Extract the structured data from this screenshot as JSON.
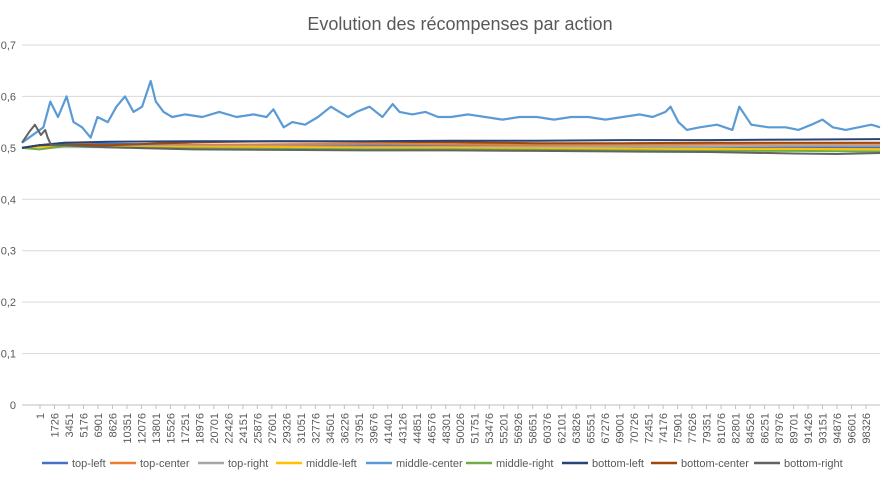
{
  "chart_data": {
    "type": "line",
    "title": "Evolution des récompenses par action",
    "xlabel": "",
    "ylabel": "",
    "ylim": [
      0,
      0.7
    ],
    "y_ticks": [
      "0",
      "0,1",
      "0,2",
      "0,3",
      "0,4",
      "0,5",
      "0,6",
      "0,7"
    ],
    "y_tick_values": [
      0,
      0.1,
      0.2,
      0.3,
      0.4,
      0.5,
      0.6,
      0.7
    ],
    "x_tick_labels": [
      "1",
      "1726",
      "3451",
      "5176",
      "6901",
      "8626",
      "10351",
      "12076",
      "13801",
      "15526",
      "17251",
      "18976",
      "20701",
      "22426",
      "24151",
      "25876",
      "27601",
      "29326",
      "31051",
      "32776",
      "34501",
      "36226",
      "37951",
      "39676",
      "41401",
      "43126",
      "44851",
      "46576",
      "48301",
      "50026",
      "51751",
      "53476",
      "55201",
      "56926",
      "58651",
      "60376",
      "62101",
      "63826",
      "65551",
      "67276",
      "69001",
      "70726",
      "72451",
      "74176",
      "75901",
      "77626",
      "79351",
      "81076",
      "82801",
      "84526",
      "86251",
      "87976",
      "89701",
      "91426",
      "93151",
      "94876",
      "96601",
      "98326"
    ],
    "xlim": [
      1,
      100000
    ],
    "grid": true,
    "legend_position": "bottom",
    "series": [
      {
        "name": "top-left",
        "color": "#4472C4",
        "x": [
          1,
          2000,
          5000,
          10000,
          20000,
          30000,
          40000,
          50000,
          60000,
          70000,
          80000,
          90000,
          100000
        ],
        "values": [
          0.5,
          0.505,
          0.51,
          0.508,
          0.506,
          0.505,
          0.505,
          0.504,
          0.503,
          0.502,
          0.502,
          0.501,
          0.501
        ]
      },
      {
        "name": "top-center",
        "color": "#ED7D31",
        "x": [
          1,
          2000,
          5000,
          10000,
          20000,
          30000,
          40000,
          50000,
          60000,
          70000,
          80000,
          90000,
          100000
        ],
        "values": [
          0.5,
          0.505,
          0.508,
          0.505,
          0.506,
          0.507,
          0.508,
          0.507,
          0.506,
          0.506,
          0.507,
          0.508,
          0.508
        ]
      },
      {
        "name": "top-right",
        "color": "#A5A5A5",
        "x": [
          1,
          2000,
          5000,
          10000,
          20000,
          30000,
          40000,
          50000,
          60000,
          70000,
          80000,
          90000,
          100000
        ],
        "values": [
          0.5,
          0.503,
          0.505,
          0.504,
          0.503,
          0.503,
          0.502,
          0.502,
          0.502,
          0.503,
          0.503,
          0.504,
          0.504
        ]
      },
      {
        "name": "middle-left",
        "color": "#FFC000",
        "x": [
          1,
          2000,
          5000,
          10000,
          20000,
          30000,
          40000,
          50000,
          60000,
          70000,
          80000,
          90000,
          100000
        ],
        "values": [
          0.5,
          0.502,
          0.503,
          0.502,
          0.501,
          0.501,
          0.5,
          0.5,
          0.499,
          0.499,
          0.498,
          0.498,
          0.497
        ]
      },
      {
        "name": "middle-center",
        "color": "#5B9BD5",
        "x": [
          1,
          2500,
          3300,
          4200,
          5200,
          6000,
          7000,
          8000,
          8800,
          10000,
          11000,
          12000,
          13000,
          14000,
          15000,
          15600,
          16500,
          17500,
          19000,
          21000,
          23000,
          25000,
          27000,
          28500,
          29300,
          30500,
          31500,
          33000,
          34500,
          36000,
          37000,
          38000,
          39000,
          40500,
          42000,
          43200,
          44000,
          45500,
          47000,
          48500,
          50000,
          52000,
          54000,
          56000,
          58000,
          60000,
          62000,
          64000,
          66000,
          68000,
          70000,
          72000,
          73500,
          75000,
          75600,
          76500,
          77500,
          79000,
          81000,
          82800,
          83600,
          85000,
          87000,
          89000,
          90500,
          92000,
          93300,
          94500,
          96000,
          97500,
          99000,
          100000
        ],
        "values": [
          0.51,
          0.54,
          0.59,
          0.56,
          0.6,
          0.55,
          0.54,
          0.52,
          0.56,
          0.55,
          0.58,
          0.6,
          0.57,
          0.58,
          0.63,
          0.59,
          0.57,
          0.56,
          0.565,
          0.56,
          0.57,
          0.56,
          0.565,
          0.56,
          0.575,
          0.54,
          0.55,
          0.545,
          0.56,
          0.58,
          0.57,
          0.56,
          0.57,
          0.58,
          0.56,
          0.585,
          0.57,
          0.565,
          0.57,
          0.56,
          0.56,
          0.565,
          0.56,
          0.555,
          0.56,
          0.56,
          0.555,
          0.56,
          0.56,
          0.555,
          0.56,
          0.565,
          0.56,
          0.57,
          0.58,
          0.55,
          0.535,
          0.54,
          0.545,
          0.535,
          0.58,
          0.545,
          0.54,
          0.54,
          0.535,
          0.545,
          0.555,
          0.54,
          0.535,
          0.54,
          0.545,
          0.54
        ]
      },
      {
        "name": "middle-right",
        "color": "#70AD47",
        "x": [
          1,
          2000,
          5000,
          10000,
          20000,
          30000,
          40000,
          50000,
          60000,
          70000,
          80000,
          90000,
          100000
        ],
        "values": [
          0.5,
          0.497,
          0.503,
          0.501,
          0.499,
          0.498,
          0.497,
          0.497,
          0.496,
          0.495,
          0.494,
          0.494,
          0.493
        ]
      },
      {
        "name": "bottom-left",
        "color": "#264478",
        "x": [
          1,
          2000,
          5000,
          10000,
          20000,
          30000,
          40000,
          50000,
          60000,
          70000,
          80000,
          90000,
          100000
        ],
        "values": [
          0.5,
          0.505,
          0.51,
          0.512,
          0.513,
          0.513,
          0.513,
          0.514,
          0.514,
          0.515,
          0.515,
          0.516,
          0.517
        ]
      },
      {
        "name": "bottom-center",
        "color": "#9E480E",
        "x": [
          1,
          2000,
          5000,
          10000,
          20000,
          30000,
          40000,
          50000,
          60000,
          70000,
          80000,
          90000,
          100000
        ],
        "values": [
          0.5,
          0.505,
          0.506,
          0.505,
          0.511,
          0.513,
          0.512,
          0.511,
          0.509,
          0.509,
          0.51,
          0.51,
          0.51
        ]
      },
      {
        "name": "bottom-right",
        "color": "#636363",
        "x": [
          1,
          800,
          1500,
          2200,
          2700,
          3000,
          3400,
          4000,
          5000,
          7000,
          10000,
          15000,
          20000,
          30000,
          40000,
          50000,
          60000,
          70000,
          80000,
          90000,
          95000,
          100000
        ],
        "values": [
          0.51,
          0.53,
          0.545,
          0.525,
          0.535,
          0.52,
          0.505,
          0.505,
          0.505,
          0.503,
          0.501,
          0.499,
          0.497,
          0.496,
          0.495,
          0.495,
          0.494,
          0.493,
          0.492,
          0.489,
          0.488,
          0.49
        ]
      }
    ]
  }
}
